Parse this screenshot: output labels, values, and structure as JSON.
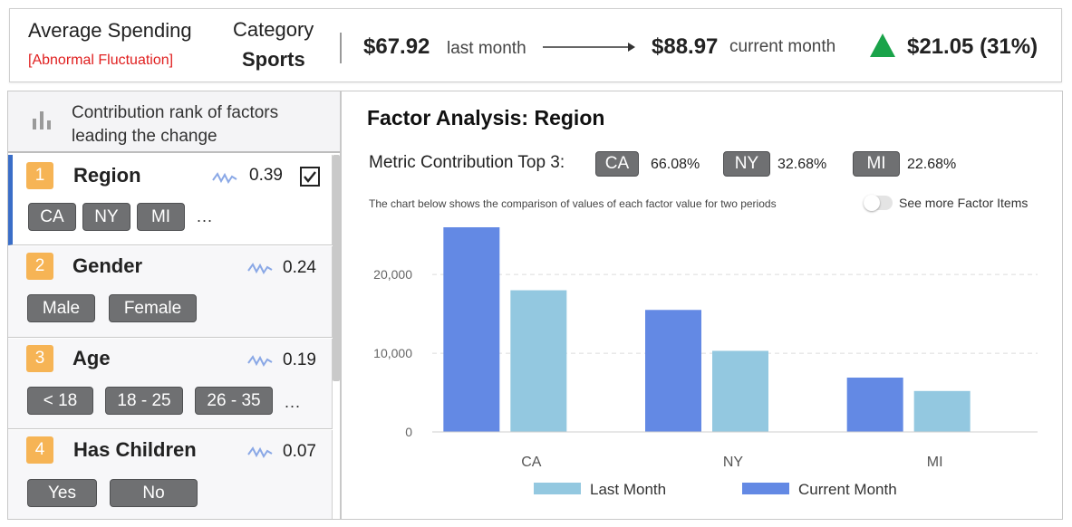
{
  "summary": {
    "metric_name": "Average Spending",
    "metric_flag": "[Abnormal Fluctuation]",
    "category_label": "Category",
    "category_value": "Sports",
    "last_value": "$67.92",
    "last_label": "last month",
    "current_value": "$88.97",
    "current_label": "current month",
    "delta": "$21.05 (31%)",
    "colors": {
      "flag": "#e02020",
      "up_indicator": "#1aa34a"
    }
  },
  "left_panel": {
    "header_icon": "bar-chart-icon",
    "title": "Contribution rank of factors leading the change",
    "factors": [
      {
        "rank": "1",
        "name": "Region",
        "score": "0.39",
        "checked": true,
        "chips": [
          "CA",
          "NY",
          "MI"
        ],
        "more": "..."
      },
      {
        "rank": "2",
        "name": "Gender",
        "score": "0.24",
        "checked": false,
        "chips": [
          "Male",
          "Female"
        ],
        "more": ""
      },
      {
        "rank": "3",
        "name": "Age",
        "score": "0.19",
        "checked": false,
        "chips": [
          "< 18",
          "18 - 25",
          "26 - 35"
        ],
        "more": "..."
      },
      {
        "rank": "4",
        "name": "Has Children",
        "score": "0.07",
        "checked": false,
        "chips": [
          "Yes",
          "No"
        ],
        "more": ""
      }
    ],
    "colors": {
      "rank_badge": "#f6b455",
      "active_bar": "#3a6ec8",
      "chip": "#6f7072"
    }
  },
  "analysis": {
    "title": "Factor Analysis: Region",
    "contrib_label": "Metric Contribution Top 3:",
    "top3": [
      {
        "tag": "CA",
        "pct": "66.08%"
      },
      {
        "tag": "NY",
        "pct": "32.68%"
      },
      {
        "tag": "MI",
        "pct": "22.68%"
      }
    ],
    "note": "The chart below shows the comparison of values of each factor value for two periods",
    "toggle_label": "See more Factor Items",
    "toggle_on": false
  },
  "chart_data": {
    "type": "bar",
    "categories": [
      "CA",
      "NY",
      "MI"
    ],
    "series": [
      {
        "name": "Current Month",
        "color": "#6389e4",
        "values": [
          26000,
          15500,
          6900
        ]
      },
      {
        "name": "Last Month",
        "color": "#93c8e0",
        "values": [
          18000,
          10300,
          5200
        ]
      }
    ],
    "y_ticks": [
      "0",
      "10,000",
      "20,000"
    ],
    "y_tick_values": [
      0,
      10000,
      20000
    ],
    "ylim": [
      0,
      26000
    ],
    "grid": true,
    "legend_position": "bottom",
    "legend": [
      {
        "label": "Last Month",
        "color": "#93c8e0"
      },
      {
        "label": "Current Month",
        "color": "#6389e4"
      }
    ]
  }
}
